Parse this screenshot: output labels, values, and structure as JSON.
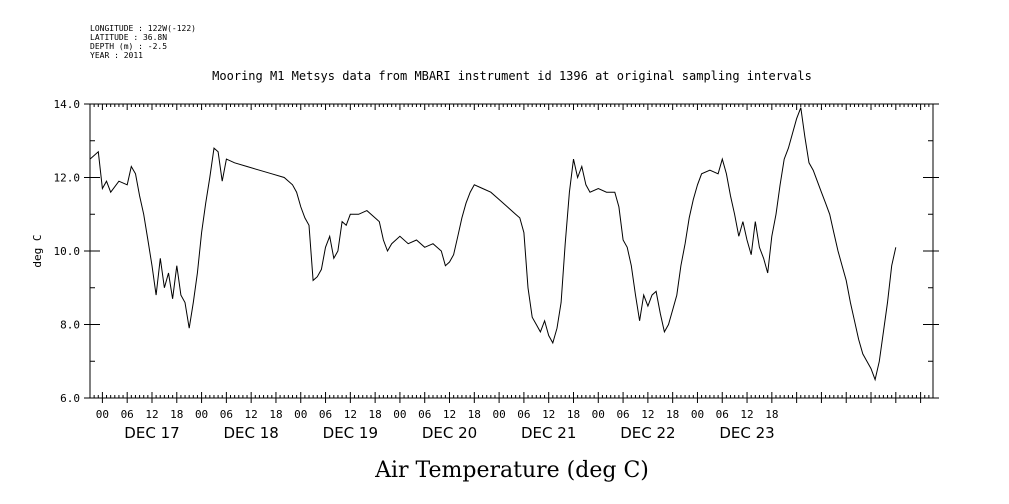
{
  "header": {
    "longitude": "LONGITUDE : 122W(-122)",
    "latitude": "LATITUDE : 36.8N",
    "depth": "DEPTH (m) : -2.5",
    "year": "YEAR : 2011"
  },
  "chart_data": {
    "type": "line",
    "title": "Mooring M1 Metsys data from MBARI instrument id 1396 at original sampling intervals",
    "xlabel": "Air Temperature (deg C)",
    "ylabel": "deg C",
    "ylim": [
      6.0,
      14.0
    ],
    "yticks": [
      "6.0",
      "8.0",
      "10.0",
      "12.0",
      "14.0"
    ],
    "xlim": [
      -3,
      201
    ],
    "hour_ticks": [
      "00",
      "06",
      "12",
      "18"
    ],
    "day_labels": [
      "DEC 17",
      "DEC 18",
      "DEC 19",
      "DEC 20",
      "DEC 21",
      "DEC 22",
      "DEC 23"
    ],
    "grid": false,
    "series": [
      {
        "x_unit": "hours since DEC 17 00:00",
        "points": [
          [
            -3,
            12.5
          ],
          [
            -2,
            12.6
          ],
          [
            -1,
            12.7
          ],
          [
            0,
            11.7
          ],
          [
            1,
            11.9
          ],
          [
            2,
            11.6
          ],
          [
            4,
            11.9
          ],
          [
            6,
            11.8
          ],
          [
            7,
            12.3
          ],
          [
            8,
            12.1
          ],
          [
            9,
            11.5
          ],
          [
            10,
            11.0
          ],
          [
            11,
            10.3
          ],
          [
            12,
            9.6
          ],
          [
            13,
            8.8
          ],
          [
            14,
            9.8
          ],
          [
            15,
            9.0
          ],
          [
            16,
            9.4
          ],
          [
            17,
            8.7
          ],
          [
            18,
            9.6
          ],
          [
            19,
            8.8
          ],
          [
            20,
            8.6
          ],
          [
            21,
            7.9
          ],
          [
            22,
            8.6
          ],
          [
            23,
            9.4
          ],
          [
            24,
            10.5
          ],
          [
            25,
            11.3
          ],
          [
            26,
            12.0
          ],
          [
            27,
            12.8
          ],
          [
            28,
            12.7
          ],
          [
            29,
            11.9
          ],
          [
            30,
            12.5
          ],
          [
            32,
            12.4
          ],
          [
            35,
            12.3
          ],
          [
            38,
            12.2
          ],
          [
            41,
            12.1
          ],
          [
            44,
            12.0
          ],
          [
            46,
            11.8
          ],
          [
            47,
            11.6
          ],
          [
            48,
            11.2
          ],
          [
            49,
            10.9
          ],
          [
            50,
            10.7
          ],
          [
            51,
            9.2
          ],
          [
            52,
            9.3
          ],
          [
            53,
            9.5
          ],
          [
            54,
            10.1
          ],
          [
            55,
            10.4
          ],
          [
            56,
            9.8
          ],
          [
            57,
            10.0
          ],
          [
            58,
            10.8
          ],
          [
            59,
            10.7
          ],
          [
            60,
            11.0
          ],
          [
            62,
            11.0
          ],
          [
            64,
            11.1
          ],
          [
            66,
            10.9
          ],
          [
            67,
            10.8
          ],
          [
            68,
            10.3
          ],
          [
            69,
            10.0
          ],
          [
            70,
            10.2
          ],
          [
            72,
            10.4
          ],
          [
            74,
            10.2
          ],
          [
            76,
            10.3
          ],
          [
            78,
            10.1
          ],
          [
            80,
            10.2
          ],
          [
            82,
            10.0
          ],
          [
            83,
            9.6
          ],
          [
            84,
            9.7
          ],
          [
            85,
            9.9
          ],
          [
            86,
            10.4
          ],
          [
            87,
            10.9
          ],
          [
            88,
            11.3
          ],
          [
            89,
            11.6
          ],
          [
            90,
            11.8
          ],
          [
            92,
            11.7
          ],
          [
            94,
            11.6
          ],
          [
            96,
            11.4
          ],
          [
            98,
            11.2
          ],
          [
            100,
            11.0
          ],
          [
            101,
            10.9
          ],
          [
            102,
            10.5
          ],
          [
            103,
            9.0
          ],
          [
            104,
            8.2
          ],
          [
            105,
            8.0
          ],
          [
            106,
            7.8
          ],
          [
            107,
            8.1
          ],
          [
            108,
            7.7
          ],
          [
            109,
            7.5
          ],
          [
            110,
            7.9
          ],
          [
            111,
            8.6
          ],
          [
            112,
            10.2
          ],
          [
            113,
            11.6
          ],
          [
            114,
            12.5
          ],
          [
            115,
            12.0
          ],
          [
            116,
            12.3
          ],
          [
            117,
            11.8
          ],
          [
            118,
            11.6
          ],
          [
            120,
            11.7
          ],
          [
            122,
            11.6
          ],
          [
            124,
            11.6
          ],
          [
            125,
            11.2
          ],
          [
            126,
            10.3
          ],
          [
            127,
            10.1
          ],
          [
            128,
            9.6
          ],
          [
            129,
            8.8
          ],
          [
            130,
            8.1
          ],
          [
            131,
            8.8
          ],
          [
            132,
            8.5
          ],
          [
            133,
            8.8
          ],
          [
            134,
            8.9
          ],
          [
            135,
            8.3
          ],
          [
            136,
            7.8
          ],
          [
            137,
            8.0
          ],
          [
            138,
            8.4
          ],
          [
            139,
            8.8
          ],
          [
            140,
            9.6
          ],
          [
            141,
            10.2
          ],
          [
            142,
            10.9
          ],
          [
            143,
            11.4
          ],
          [
            144,
            11.8
          ],
          [
            145,
            12.1
          ],
          [
            147,
            12.2
          ],
          [
            149,
            12.1
          ],
          [
            150,
            12.5
          ],
          [
            151,
            12.1
          ],
          [
            152,
            11.5
          ],
          [
            153,
            11.0
          ],
          [
            154,
            10.4
          ],
          [
            155,
            10.8
          ],
          [
            156,
            10.3
          ],
          [
            157,
            9.9
          ],
          [
            158,
            10.8
          ],
          [
            159,
            10.1
          ],
          [
            160,
            9.8
          ],
          [
            161,
            9.4
          ],
          [
            162,
            10.4
          ],
          [
            163,
            11.0
          ],
          [
            164,
            11.8
          ],
          [
            165,
            12.5
          ],
          [
            166,
            12.8
          ],
          [
            167,
            13.2
          ],
          [
            168,
            13.6
          ],
          [
            169,
            13.9
          ],
          [
            170,
            13.1
          ],
          [
            171,
            12.4
          ],
          [
            172,
            12.2
          ],
          [
            173,
            11.9
          ],
          [
            174,
            11.6
          ],
          [
            175,
            11.3
          ],
          [
            176,
            11.0
          ],
          [
            177,
            10.5
          ],
          [
            178,
            10.0
          ],
          [
            179,
            9.6
          ],
          [
            180,
            9.2
          ],
          [
            181,
            8.6
          ],
          [
            182,
            8.1
          ],
          [
            183,
            7.6
          ],
          [
            184,
            7.2
          ],
          [
            185,
            7.0
          ],
          [
            186,
            6.8
          ],
          [
            187,
            6.5
          ],
          [
            188,
            7.0
          ],
          [
            189,
            7.8
          ],
          [
            190,
            8.6
          ],
          [
            191,
            9.6
          ],
          [
            192,
            10.1
          ]
        ]
      }
    ]
  }
}
